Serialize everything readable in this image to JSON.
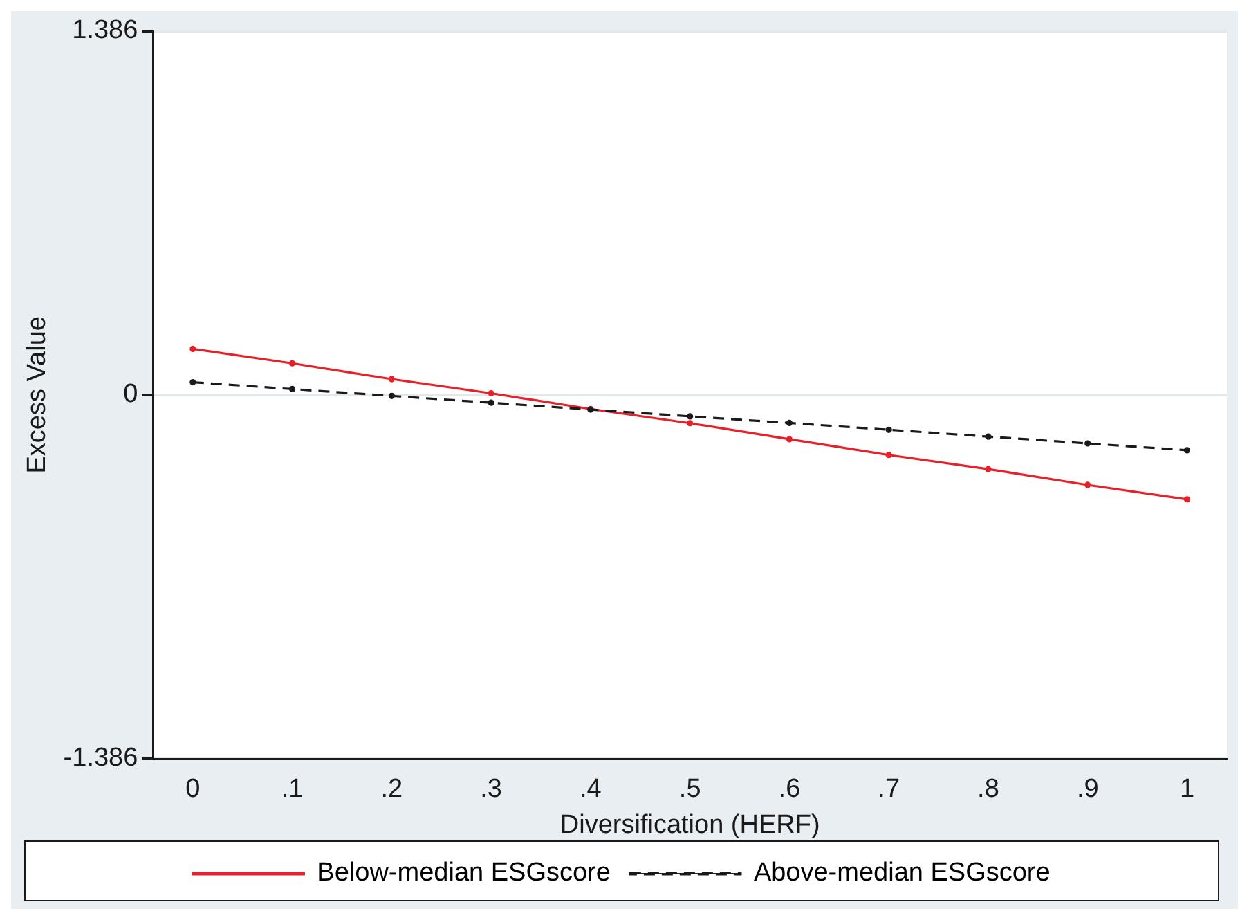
{
  "chart_data": {
    "type": "line",
    "xlabel": "Diversification (HERF)",
    "ylabel": "Excess Value",
    "x": [
      0,
      0.1,
      0.2,
      0.3,
      0.4,
      0.5,
      0.6,
      0.7,
      0.8,
      0.9,
      1
    ],
    "series": [
      {
        "name": "Below-median ESGscore",
        "color": "#e8202a",
        "line_style": "solid",
        "values": [
          0.175,
          0.12,
          0.06,
          0.006,
          -0.054,
          -0.108,
          -0.169,
          -0.229,
          -0.283,
          -0.343,
          -0.398
        ]
      },
      {
        "name": "Above-median ESGscore",
        "color": "#1a1a1a",
        "line_style": "dashed",
        "values": [
          0.048,
          0.022,
          -0.004,
          -0.03,
          -0.056,
          -0.082,
          -0.107,
          -0.133,
          -0.159,
          -0.185,
          -0.211
        ]
      }
    ],
    "xlim": [
      -0.04,
      1.04
    ],
    "xticks": [
      0,
      {
        "value": 0.1,
        "label": ".1"
      },
      {
        "value": 0.2,
        "label": ".2"
      },
      {
        "value": 0.3,
        "label": ".3"
      },
      {
        "value": 0.4,
        "label": ".4"
      },
      {
        "value": 0.5,
        "label": ".5"
      },
      {
        "value": 0.6,
        "label": ".6"
      },
      {
        "value": 0.7,
        "label": ".7"
      },
      {
        "value": 0.8,
        "label": ".8"
      },
      {
        "value": 0.9,
        "label": ".9"
      },
      1
    ],
    "ylim": [
      -1.386,
      1.386
    ],
    "yticks": [
      -1.386,
      0,
      1.386
    ],
    "grid": "y",
    "legend": "bottom",
    "marker": "circle"
  }
}
